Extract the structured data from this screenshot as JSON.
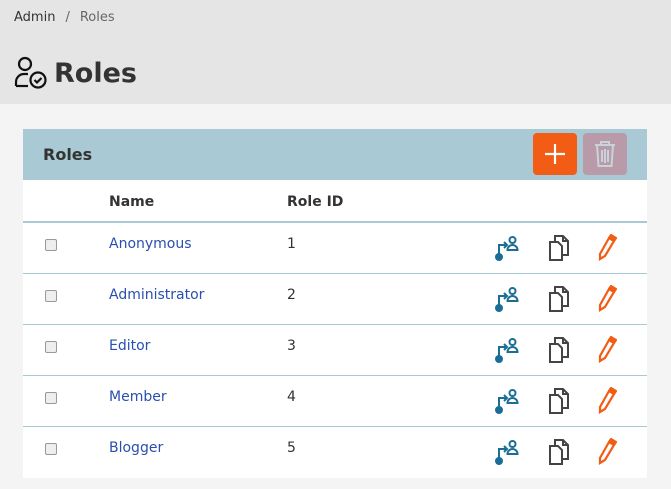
{
  "breadcrumb": {
    "root": "Admin",
    "separator": "/",
    "current": "Roles"
  },
  "page_title": "Roles",
  "panel": {
    "title": "Roles",
    "add_icon": "plus-icon",
    "delete_icon": "trash-icon"
  },
  "table": {
    "headers": {
      "name": "Name",
      "role_id": "Role ID"
    },
    "rows": [
      {
        "name": "Anonymous",
        "id": "1"
      },
      {
        "name": "Administrator",
        "id": "2"
      },
      {
        "name": "Editor",
        "id": "3"
      },
      {
        "name": "Member",
        "id": "4"
      },
      {
        "name": "Blogger",
        "id": "5"
      }
    ]
  },
  "colors": {
    "accent": "#f25c14",
    "panel_header": "#a9c9d5",
    "link": "#2a4fb0",
    "assign_icon": "#1a6e96"
  }
}
